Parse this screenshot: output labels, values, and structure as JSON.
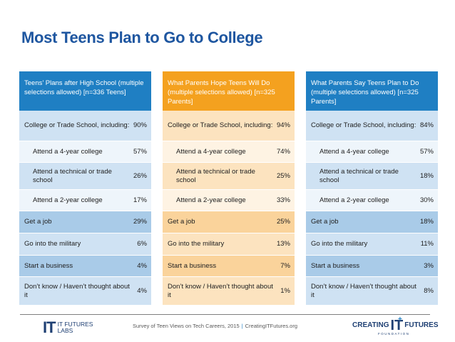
{
  "title": "Most Teens Plan to Go to College",
  "panels": [
    {
      "header": "Teens’ Plans after High School (multiple selections allowed) [n=336 Teens]",
      "rows": [
        {
          "label": "College or Trade School, including:",
          "value": "90%"
        },
        {
          "label": "Attend a 4-year college",
          "value": "57%"
        },
        {
          "label": "Attend a technical or trade school",
          "value": "26%"
        },
        {
          "label": "Attend a 2-year college",
          "value": "17%"
        },
        {
          "label": "Get a job",
          "value": "29%"
        },
        {
          "label": "Go into the military",
          "value": "6%"
        },
        {
          "label": "Start a business",
          "value": "4%"
        },
        {
          "label": "Don’t know / Haven’t thought about it",
          "value": "4%"
        }
      ]
    },
    {
      "header": "What Parents Hope Teens Will Do (multiple selections allowed) [n=325 Parents]",
      "rows": [
        {
          "label": "College or Trade School, including:",
          "value": "94%"
        },
        {
          "label": "Attend a 4-year college",
          "value": "74%"
        },
        {
          "label": "Attend a technical or trade school",
          "value": "25%"
        },
        {
          "label": "Attend a 2-year college",
          "value": "33%"
        },
        {
          "label": "Get a job",
          "value": "25%"
        },
        {
          "label": "Go into the military",
          "value": "13%"
        },
        {
          "label": "Start a business",
          "value": "7%"
        },
        {
          "label": "Don’t know / Haven’t thought about it",
          "value": "1%"
        }
      ]
    },
    {
      "header": "What Parents Say Teens Plan to Do (multiple selections allowed) [n=325 Parents]",
      "rows": [
        {
          "label": "College or Trade School, including:",
          "value": "84%"
        },
        {
          "label": "Attend a 4-year college",
          "value": "57%"
        },
        {
          "label": "Attend a technical or trade school",
          "value": "18%"
        },
        {
          "label": "Attend a 2-year college",
          "value": "30%"
        },
        {
          "label": "Get a job",
          "value": "18%"
        },
        {
          "label": "Go into the military",
          "value": "11%"
        },
        {
          "label": "Start a business",
          "value": "3%"
        },
        {
          "label": "Don’t know / Haven’t thought about it",
          "value": "8%"
        }
      ]
    }
  ],
  "colors": {
    "title": "#1e56a0",
    "teen_header": "#1f7fc3",
    "parent_hope_header": "#f4a11f",
    "parent_say_header": "#1f7fc3"
  },
  "footer": {
    "left_logo_mark": "IT",
    "left_logo_line1": "IT FUTURES",
    "left_logo_line2": "LABS",
    "survey_note": "Survey of Teen Views on Tech Careers, 2015",
    "separator": "|",
    "website": "CreatingITFutures.org",
    "right_logo_word1": "CREATING",
    "right_logo_it": "IT",
    "right_logo_word2": "FUTURES",
    "right_logo_sub": "FOUNDATION"
  }
}
